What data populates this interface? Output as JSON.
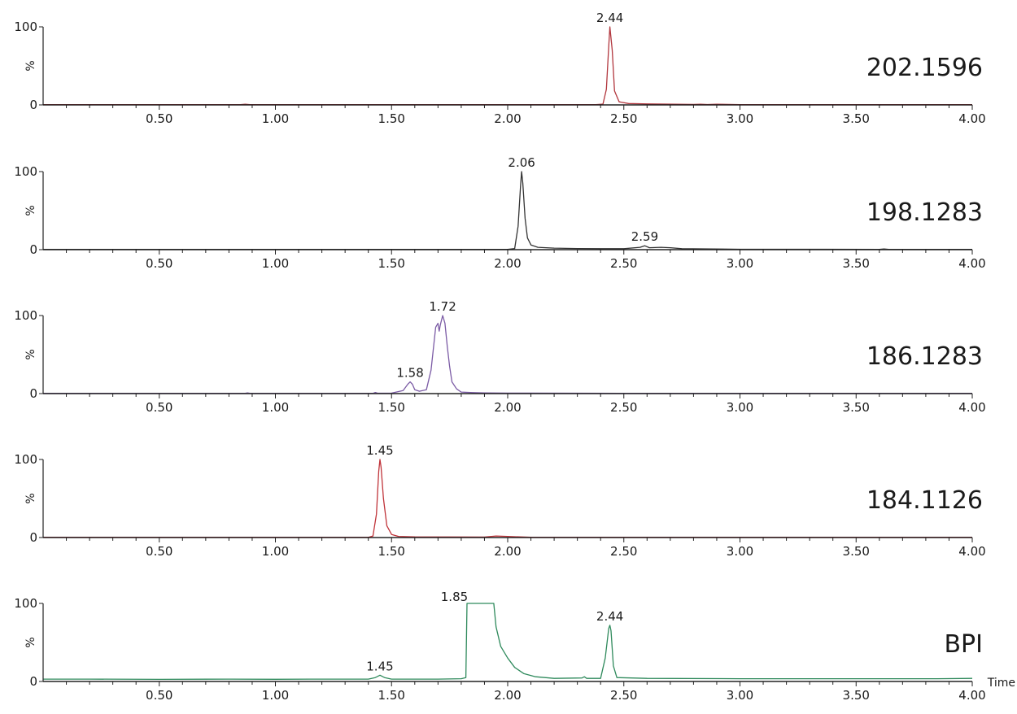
{
  "chart_data": {
    "type": "line",
    "x_ticks": [
      "0.50",
      "1.00",
      "1.50",
      "2.00",
      "2.50",
      "3.00",
      "3.50",
      "4.00"
    ],
    "y_ticks": [
      "0",
      "100"
    ],
    "ylabel": "%",
    "xlabel": "Time",
    "xlim": [
      0.0,
      4.0
    ],
    "ylim": [
      0,
      100
    ],
    "panels": [
      {
        "name": "202.1596",
        "color": "#b2373e",
        "peaks": [
          {
            "rt": 2.44,
            "label": "2.44"
          }
        ],
        "points": [
          [
            0.0,
            0.3
          ],
          [
            0.85,
            0.3
          ],
          [
            0.87,
            0.8
          ],
          [
            0.89,
            0.3
          ],
          [
            2.38,
            0.3
          ],
          [
            2.41,
            1.0
          ],
          [
            2.425,
            20
          ],
          [
            2.435,
            75
          ],
          [
            2.44,
            100
          ],
          [
            2.45,
            70
          ],
          [
            2.46,
            18
          ],
          [
            2.48,
            4
          ],
          [
            2.52,
            1.8
          ],
          [
            2.6,
            1.2
          ],
          [
            2.8,
            0.6
          ],
          [
            2.83,
            0.9
          ],
          [
            2.86,
            0.5
          ],
          [
            2.9,
            0.8
          ],
          [
            3.0,
            0.4
          ],
          [
            4.0,
            0.3
          ]
        ]
      },
      {
        "name": "198.1283",
        "color": "#333333",
        "peaks": [
          {
            "rt": 2.06,
            "label": "2.06"
          },
          {
            "rt": 2.59,
            "label": "2.59"
          }
        ],
        "points": [
          [
            0.0,
            0.3
          ],
          [
            2.0,
            0.3
          ],
          [
            2.03,
            1.5
          ],
          [
            2.045,
            30
          ],
          [
            2.055,
            80
          ],
          [
            2.06,
            100
          ],
          [
            2.065,
            85
          ],
          [
            2.075,
            40
          ],
          [
            2.085,
            15
          ],
          [
            2.1,
            6
          ],
          [
            2.13,
            3
          ],
          [
            2.2,
            2
          ],
          [
            2.3,
            1.5
          ],
          [
            2.4,
            1.2
          ],
          [
            2.5,
            1.2
          ],
          [
            2.57,
            3
          ],
          [
            2.59,
            5
          ],
          [
            2.61,
            2.5
          ],
          [
            2.66,
            3
          ],
          [
            2.7,
            2.5
          ],
          [
            2.75,
            1.2
          ],
          [
            3.0,
            0.5
          ],
          [
            3.6,
            0.4
          ],
          [
            3.62,
            0.9
          ],
          [
            3.64,
            0.4
          ],
          [
            4.0,
            0.3
          ]
        ]
      },
      {
        "name": "186.1283",
        "color": "#7b5ba5",
        "peaks": [
          {
            "rt": 1.58,
            "label": "1.58"
          },
          {
            "rt": 1.72,
            "label": "1.72"
          }
        ],
        "points": [
          [
            0.0,
            0.3
          ],
          [
            0.87,
            0.3
          ],
          [
            0.88,
            0.8
          ],
          [
            0.89,
            0.3
          ],
          [
            1.42,
            0.3
          ],
          [
            1.43,
            1.5
          ],
          [
            1.44,
            0.5
          ],
          [
            1.5,
            0.6
          ],
          [
            1.55,
            4
          ],
          [
            1.57,
            12
          ],
          [
            1.58,
            15
          ],
          [
            1.59,
            12
          ],
          [
            1.6,
            5
          ],
          [
            1.62,
            3
          ],
          [
            1.65,
            5
          ],
          [
            1.67,
            30
          ],
          [
            1.69,
            85
          ],
          [
            1.7,
            90
          ],
          [
            1.705,
            80
          ],
          [
            1.71,
            88
          ],
          [
            1.72,
            100
          ],
          [
            1.73,
            90
          ],
          [
            1.74,
            60
          ],
          [
            1.75,
            35
          ],
          [
            1.76,
            15
          ],
          [
            1.78,
            6
          ],
          [
            1.8,
            2
          ],
          [
            1.85,
            1.2
          ],
          [
            1.9,
            0.8
          ],
          [
            2.0,
            0.6
          ],
          [
            2.1,
            0.6
          ],
          [
            2.5,
            0.3
          ],
          [
            4.0,
            0.3
          ]
        ]
      },
      {
        "name": "184.1126",
        "color": "#c0343a",
        "peaks": [
          {
            "rt": 1.45,
            "label": "1.45"
          }
        ],
        "points": [
          [
            0.0,
            0.3
          ],
          [
            1.4,
            0.3
          ],
          [
            1.42,
            2
          ],
          [
            1.435,
            30
          ],
          [
            1.445,
            85
          ],
          [
            1.45,
            100
          ],
          [
            1.455,
            90
          ],
          [
            1.465,
            50
          ],
          [
            1.48,
            15
          ],
          [
            1.5,
            4
          ],
          [
            1.53,
            1.5
          ],
          [
            1.6,
            0.8
          ],
          [
            1.9,
            0.6
          ],
          [
            1.95,
            2
          ],
          [
            2.0,
            1.5
          ],
          [
            2.05,
            0.8
          ],
          [
            2.1,
            0.4
          ],
          [
            4.0,
            0.3
          ]
        ]
      },
      {
        "name": "BPI",
        "color": "#2f8a5c",
        "peaks": [
          {
            "rt": 1.45,
            "label": "1.45"
          },
          {
            "rt": 1.85,
            "label": "1.85"
          },
          {
            "rt": 2.44,
            "label": "2.44"
          }
        ],
        "points": [
          [
            0.0,
            3
          ],
          [
            0.2,
            3
          ],
          [
            0.5,
            2.7
          ],
          [
            0.8,
            3
          ],
          [
            1.0,
            2.8
          ],
          [
            1.2,
            3
          ],
          [
            1.4,
            3
          ],
          [
            1.43,
            5
          ],
          [
            1.45,
            8
          ],
          [
            1.47,
            5
          ],
          [
            1.5,
            3
          ],
          [
            1.7,
            3
          ],
          [
            1.8,
            3.5
          ],
          [
            1.82,
            5
          ],
          [
            1.825,
            100
          ],
          [
            1.94,
            100
          ],
          [
            1.95,
            70
          ],
          [
            1.97,
            45
          ],
          [
            2.0,
            30
          ],
          [
            2.03,
            18
          ],
          [
            2.07,
            10
          ],
          [
            2.12,
            6
          ],
          [
            2.2,
            4
          ],
          [
            2.32,
            4.5
          ],
          [
            2.33,
            6
          ],
          [
            2.34,
            4
          ],
          [
            2.4,
            4
          ],
          [
            2.42,
            30
          ],
          [
            2.435,
            68
          ],
          [
            2.44,
            72
          ],
          [
            2.445,
            65
          ],
          [
            2.455,
            20
          ],
          [
            2.47,
            5
          ],
          [
            2.6,
            4
          ],
          [
            3.0,
            3.5
          ],
          [
            3.5,
            3.5
          ],
          [
            3.85,
            3.5
          ],
          [
            4.0,
            4
          ]
        ]
      }
    ]
  }
}
